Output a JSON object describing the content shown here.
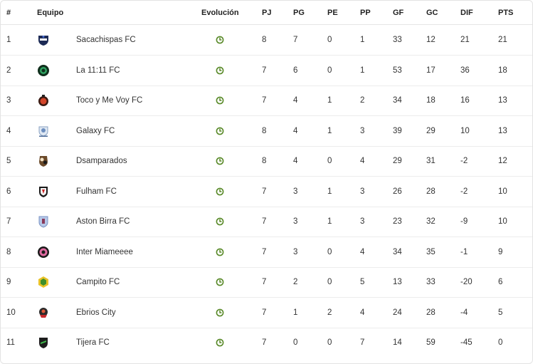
{
  "headers": {
    "rank": "#",
    "team": "Equipo",
    "evolution": "Evolución",
    "pj": "PJ",
    "pg": "PG",
    "pe": "PE",
    "pp": "PP",
    "gf": "GF",
    "gc": "GC",
    "dif": "DIF",
    "pts": "PTS"
  },
  "colors": {
    "evolution_icon": "#5a8a2a",
    "border": "#e6e6e6"
  },
  "rows": [
    {
      "rank": "1",
      "team": "Sacachispas FC",
      "logo_icon": "sacachispas-logo-icon",
      "pj": "8",
      "pg": "7",
      "pe": "0",
      "pp": "1",
      "gf": "33",
      "gc": "12",
      "dif": "21",
      "pts": "21"
    },
    {
      "rank": "2",
      "team": "La 11:11 FC",
      "logo_icon": "la1111-logo-icon",
      "pj": "7",
      "pg": "6",
      "pe": "0",
      "pp": "1",
      "gf": "53",
      "gc": "17",
      "dif": "36",
      "pts": "18"
    },
    {
      "rank": "3",
      "team": "Toco y Me Voy FC",
      "logo_icon": "toco-y-me-voy-logo-icon",
      "pj": "7",
      "pg": "4",
      "pe": "1",
      "pp": "2",
      "gf": "34",
      "gc": "18",
      "dif": "16",
      "pts": "13"
    },
    {
      "rank": "4",
      "team": "Galaxy FC",
      "logo_icon": "galaxy-logo-icon",
      "pj": "8",
      "pg": "4",
      "pe": "1",
      "pp": "3",
      "gf": "39",
      "gc": "29",
      "dif": "10",
      "pts": "13"
    },
    {
      "rank": "5",
      "team": "Dsamparados",
      "logo_icon": "dsamparados-logo-icon",
      "pj": "8",
      "pg": "4",
      "pe": "0",
      "pp": "4",
      "gf": "29",
      "gc": "31",
      "dif": "-2",
      "pts": "12"
    },
    {
      "rank": "6",
      "team": "Fulham FC",
      "logo_icon": "fulham-logo-icon",
      "pj": "7",
      "pg": "3",
      "pe": "1",
      "pp": "3",
      "gf": "26",
      "gc": "28",
      "dif": "-2",
      "pts": "10"
    },
    {
      "rank": "7",
      "team": "Aston Birra FC",
      "logo_icon": "aston-birra-logo-icon",
      "pj": "7",
      "pg": "3",
      "pe": "1",
      "pp": "3",
      "gf": "23",
      "gc": "32",
      "dif": "-9",
      "pts": "10"
    },
    {
      "rank": "8",
      "team": "Inter Miameeee",
      "logo_icon": "inter-miameeee-logo-icon",
      "pj": "7",
      "pg": "3",
      "pe": "0",
      "pp": "4",
      "gf": "34",
      "gc": "35",
      "dif": "-1",
      "pts": "9"
    },
    {
      "rank": "9",
      "team": "Campito FC",
      "logo_icon": "campito-logo-icon",
      "pj": "7",
      "pg": "2",
      "pe": "0",
      "pp": "5",
      "gf": "13",
      "gc": "33",
      "dif": "-20",
      "pts": "6"
    },
    {
      "rank": "10",
      "team": "Ebrios City",
      "logo_icon": "ebrios-city-logo-icon",
      "pj": "7",
      "pg": "1",
      "pe": "2",
      "pp": "4",
      "gf": "24",
      "gc": "28",
      "dif": "-4",
      "pts": "5"
    },
    {
      "rank": "11",
      "team": "Tijera FC",
      "logo_icon": "tijera-logo-icon",
      "pj": "7",
      "pg": "0",
      "pe": "0",
      "pp": "7",
      "gf": "14",
      "gc": "59",
      "dif": "-45",
      "pts": "0"
    }
  ]
}
